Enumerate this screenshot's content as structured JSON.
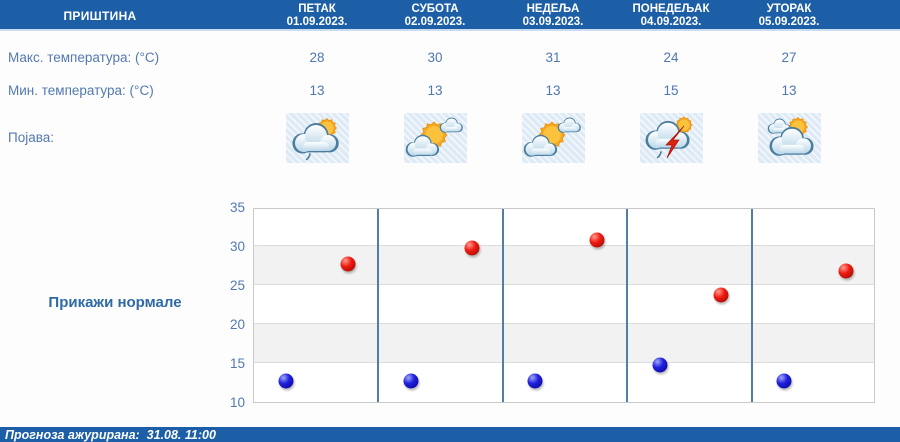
{
  "header": {
    "location": "ПРИШТИНА",
    "days": [
      {
        "name": "ПЕТАК",
        "date": "01.09.2023."
      },
      {
        "name": "СУБОТА",
        "date": "02.09.2023."
      },
      {
        "name": "НЕДЕЉА",
        "date": "03.09.2023."
      },
      {
        "name": "ПОНЕДЕЉАК",
        "date": "04.09.2023."
      },
      {
        "name": "УТОРАК",
        "date": "05.09.2023."
      }
    ]
  },
  "table": {
    "max_label": "Макс. температура: (°C)",
    "min_label": "Мин. температура: (°C)",
    "phenomenon_label": "Појава:",
    "max_temps": [
      "28",
      "30",
      "31",
      "24",
      "27"
    ],
    "min_temps": [
      "13",
      "13",
      "13",
      "15",
      "13"
    ],
    "phenomena": [
      "partly-cloudy-light-rain",
      "mostly-sunny",
      "mostly-sunny",
      "thunderstorm",
      "partly-cloudy"
    ]
  },
  "normals_button": "Прикажи нормале",
  "footer": {
    "updated_text": "Прогноза ажурирана:  31.08. 11:00"
  },
  "chart_data": {
    "type": "scatter",
    "categories": [
      "01.09.2023.",
      "02.09.2023.",
      "03.09.2023.",
      "04.09.2023.",
      "05.09.2023."
    ],
    "series": [
      {
        "name": "Макс. температура (°C)",
        "color": "#e01510",
        "values": [
          28,
          30,
          31,
          24,
          27
        ]
      },
      {
        "name": "Мин. температура (°C)",
        "color": "#1515d0",
        "values": [
          13,
          13,
          13,
          15,
          13
        ]
      }
    ],
    "ylim": [
      10,
      35
    ],
    "yticks": [
      35,
      30,
      25,
      20,
      15,
      10
    ],
    "grid": true,
    "legend": "none"
  },
  "colors": {
    "header_bg": "#1d5fa7",
    "footer_bg": "#1d5fa7",
    "text_blue": "#5379b1",
    "link_blue": "#2f6aa5",
    "column_separator": "#517ea4",
    "band_gray": "#f2f2f2",
    "icon_cell_bg": "#ddeaf5"
  }
}
